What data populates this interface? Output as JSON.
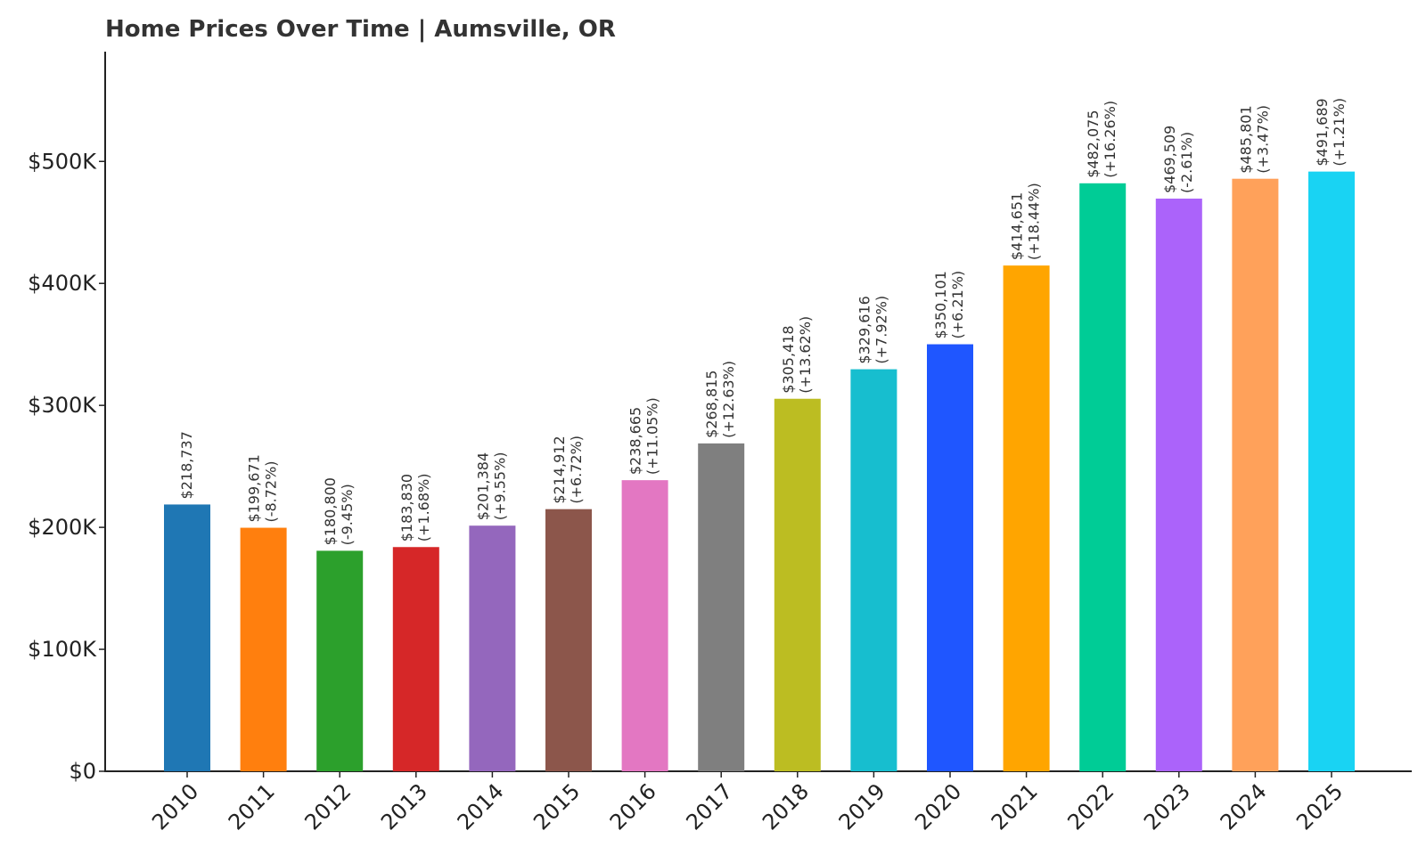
{
  "chart_data": {
    "type": "bar",
    "title": "Home Prices Over Time | Aumsville, OR",
    "xlabel": "",
    "ylabel": "",
    "categories": [
      "2010",
      "2011",
      "2012",
      "2013",
      "2014",
      "2015",
      "2016",
      "2017",
      "2018",
      "2019",
      "2020",
      "2021",
      "2022",
      "2023",
      "2024",
      "2025"
    ],
    "values": [
      218737,
      199671,
      180800,
      183830,
      201384,
      214912,
      238665,
      268815,
      305418,
      329616,
      350101,
      414651,
      482075,
      469509,
      485801,
      491689
    ],
    "value_labels": [
      "$218,737",
      "$199,671",
      "$180,800",
      "$183,830",
      "$201,384",
      "$214,912",
      "$238,665",
      "$268,815",
      "$305,418",
      "$329,616",
      "$350,101",
      "$414,651",
      "$482,075",
      "$469,509",
      "$485,801",
      "$491,689"
    ],
    "change_labels": [
      "",
      "(-8.72%)",
      "(-9.45%)",
      "(+1.68%)",
      "(+9.55%)",
      "(+6.72%)",
      "(+11.05%)",
      "(+12.63%)",
      "(+13.62%)",
      "(+7.92%)",
      "(+6.21%)",
      "(+18.44%)",
      "(+16.26%)",
      "(-2.61%)",
      "(+3.47%)",
      "(+1.21%)"
    ],
    "colors": [
      "#1f77b4",
      "#ff7f0e",
      "#2ca02c",
      "#d62728",
      "#9467bd",
      "#8c564b",
      "#e377c2",
      "#7f7f7f",
      "#bcbd22",
      "#17becf",
      "#1f56ff",
      "#ffa500",
      "#00cc96",
      "#ab63fa",
      "#ffa15a",
      "#19d3f3"
    ],
    "ylim": [
      0,
      590000
    ],
    "yticks": [
      0,
      100000,
      200000,
      300000,
      400000,
      500000
    ],
    "ytick_labels": [
      "$0",
      "$100K",
      "$200K",
      "$300K",
      "$400K",
      "$500K"
    ],
    "grid": false,
    "legend": "none"
  }
}
